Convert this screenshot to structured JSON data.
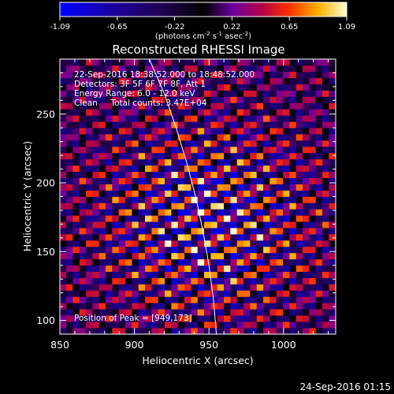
{
  "chart_data": {
    "type": "heatmap",
    "title": "Reconstructed RHESSI Image",
    "xlabel": "Heliocentric X (arcsec)",
    "ylabel": "Heliocentric Y (arcsec)",
    "xlim": [
      850,
      1035
    ],
    "ylim": [
      90,
      290
    ],
    "xticks": [
      850,
      900,
      950,
      1000
    ],
    "yticks": [
      100,
      150,
      200,
      250
    ],
    "colorbar": {
      "range": [
        -1.09,
        1.09
      ],
      "ticks": [
        "-1.09",
        "-0.65",
        "-0.22",
        "0.22",
        "0.65",
        "1.09"
      ],
      "unit_parts": [
        "(photons cm",
        "-2",
        " s",
        "-1",
        " asec",
        "-2",
        ")"
      ]
    },
    "annotations": [
      "22-Sep-2016 18:38:52.000 to 18:48:52.000",
      "Detectors: 3F 5F 6F 7F 8F, Att 1",
      "Energy Range: 6.0 - 12.0 keV",
      "Clean     Total counts: 3.47E+04"
    ],
    "peak_label": "Position of Peak = [949,173]",
    "peak": [
      949,
      173
    ],
    "timestamp": "24-Sep-2016 01:15",
    "limb_curve": [
      [
        910,
        290
      ],
      [
        920,
        265
      ],
      [
        928,
        240
      ],
      [
        935,
        215
      ],
      [
        941,
        190
      ],
      [
        946,
        165
      ],
      [
        950,
        140
      ],
      [
        953,
        115
      ],
      [
        955,
        90
      ]
    ],
    "fringe": {
      "slope_deg": 25,
      "period_arcsec": 12,
      "peak_sigma_arcsec": 55
    }
  }
}
